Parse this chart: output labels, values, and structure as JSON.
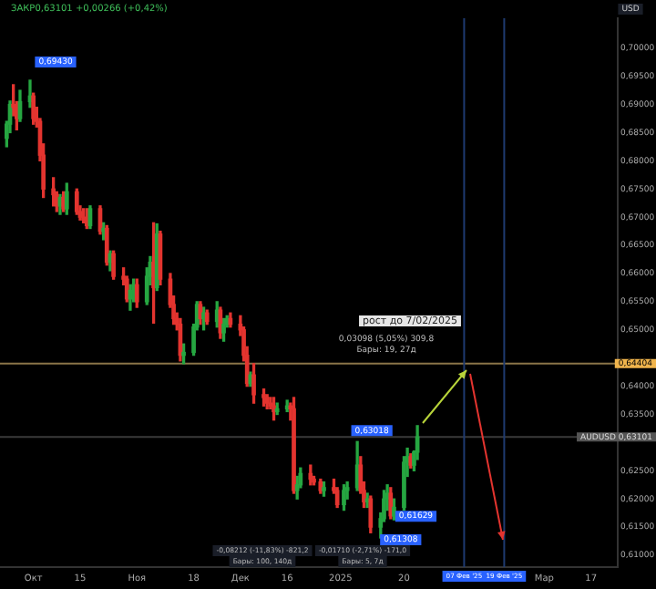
{
  "chart_data": {
    "type": "candlestick",
    "title": "ЗАКР0,63101 +0,00266 (+0,42%)",
    "ylabel": "USD",
    "x": [
      "2024-09-23",
      "2024-09-24",
      "2024-09-25",
      "2024-09-26",
      "2024-09-27",
      "2024-09-30",
      "2024-10-01",
      "2024-10-02",
      "2024-10-03",
      "2024-10-04",
      "2024-10-07",
      "2024-10-08",
      "2024-10-09",
      "2024-10-10",
      "2024-10-11",
      "2024-10-14",
      "2024-10-15",
      "2024-10-16",
      "2024-10-17",
      "2024-10-18",
      "2024-10-21",
      "2024-10-22",
      "2024-10-23",
      "2024-10-24",
      "2024-10-25",
      "2024-10-28",
      "2024-10-29",
      "2024-10-30",
      "2024-10-31",
      "2024-11-01",
      "2024-11-04",
      "2024-11-05",
      "2024-11-06",
      "2024-11-07",
      "2024-11-08",
      "2024-11-11",
      "2024-11-12",
      "2024-11-13",
      "2024-11-14",
      "2024-11-15",
      "2024-11-18",
      "2024-11-19",
      "2024-11-20",
      "2024-11-21",
      "2024-11-22",
      "2024-11-25",
      "2024-11-26",
      "2024-11-27",
      "2024-11-28",
      "2024-11-29",
      "2024-12-02",
      "2024-12-03",
      "2024-12-04",
      "2024-12-05",
      "2024-12-06",
      "2024-12-09",
      "2024-12-10",
      "2024-12-11",
      "2024-12-12",
      "2024-12-13",
      "2024-12-16",
      "2024-12-17",
      "2024-12-18",
      "2024-12-19",
      "2024-12-20",
      "2024-12-23",
      "2024-12-24",
      "2024-12-26",
      "2024-12-27",
      "2024-12-30",
      "2024-12-31",
      "2025-01-02",
      "2025-01-03",
      "2025-01-06",
      "2025-01-07",
      "2025-01-08",
      "2025-01-09",
      "2025-01-10",
      "2025-01-13",
      "2025-01-14",
      "2025-01-15",
      "2025-01-16",
      "2025-01-17",
      "2025-01-20",
      "2025-01-21",
      "2025-01-22",
      "2025-01-23",
      "2025-01-24"
    ],
    "ohlc": [
      [
        0.684,
        0.687,
        0.6825,
        0.6865
      ],
      [
        0.6865,
        0.6906,
        0.685,
        0.69
      ],
      [
        0.69,
        0.6935,
        0.688,
        0.6895
      ],
      [
        0.6895,
        0.6905,
        0.6855,
        0.6875
      ],
      [
        0.6875,
        0.6925,
        0.687,
        0.6905
      ],
      [
        0.6905,
        0.6943,
        0.6895,
        0.6915
      ],
      [
        0.6915,
        0.692,
        0.6865,
        0.6875
      ],
      [
        0.6875,
        0.6895,
        0.686,
        0.687
      ],
      [
        0.687,
        0.6875,
        0.68,
        0.681
      ],
      [
        0.681,
        0.683,
        0.6735,
        0.675
      ],
      [
        0.675,
        0.677,
        0.672,
        0.674
      ],
      [
        0.674,
        0.6745,
        0.671,
        0.672
      ],
      [
        0.672,
        0.674,
        0.6705,
        0.6735
      ],
      [
        0.6735,
        0.6745,
        0.671,
        0.6715
      ],
      [
        0.6715,
        0.676,
        0.6705,
        0.6745
      ],
      [
        0.6745,
        0.675,
        0.6705,
        0.671
      ],
      [
        0.671,
        0.672,
        0.6695,
        0.67
      ],
      [
        0.67,
        0.6715,
        0.669,
        0.6695
      ],
      [
        0.6695,
        0.6715,
        0.668,
        0.6685
      ],
      [
        0.6685,
        0.672,
        0.668,
        0.6715
      ],
      [
        0.6715,
        0.672,
        0.667,
        0.6675
      ],
      [
        0.6675,
        0.669,
        0.666,
        0.668
      ],
      [
        0.668,
        0.6685,
        0.6615,
        0.662
      ],
      [
        0.662,
        0.664,
        0.6605,
        0.6635
      ],
      [
        0.6635,
        0.664,
        0.659,
        0.6595
      ],
      [
        0.6595,
        0.661,
        0.658,
        0.659
      ],
      [
        0.659,
        0.6595,
        0.655,
        0.6555
      ],
      [
        0.6555,
        0.658,
        0.6535,
        0.657
      ],
      [
        0.657,
        0.659,
        0.655,
        0.658
      ],
      [
        0.658,
        0.659,
        0.654,
        0.655
      ],
      [
        0.655,
        0.661,
        0.6545,
        0.6595
      ],
      [
        0.6595,
        0.663,
        0.658,
        0.662
      ],
      [
        0.662,
        0.669,
        0.6512,
        0.6575
      ],
      [
        0.6575,
        0.6688,
        0.657,
        0.667
      ],
      [
        0.667,
        0.6675,
        0.658,
        0.659
      ],
      [
        0.659,
        0.66,
        0.654,
        0.6545
      ],
      [
        0.6545,
        0.656,
        0.651,
        0.652
      ],
      [
        0.652,
        0.653,
        0.65,
        0.651
      ],
      [
        0.651,
        0.652,
        0.6445,
        0.6455
      ],
      [
        0.6455,
        0.6475,
        0.644,
        0.646
      ],
      [
        0.646,
        0.651,
        0.6455,
        0.6505
      ],
      [
        0.6505,
        0.655,
        0.65,
        0.6545
      ],
      [
        0.6545,
        0.655,
        0.651,
        0.652
      ],
      [
        0.652,
        0.654,
        0.65,
        0.653
      ],
      [
        0.653,
        0.6535,
        0.651,
        0.6515
      ],
      [
        0.6515,
        0.655,
        0.6505,
        0.6535
      ],
      [
        0.6535,
        0.654,
        0.6485,
        0.6495
      ],
      [
        0.6495,
        0.652,
        0.648,
        0.651
      ],
      [
        0.651,
        0.6525,
        0.6505,
        0.652
      ],
      [
        0.652,
        0.653,
        0.6505,
        0.651
      ],
      [
        0.651,
        0.6525,
        0.649,
        0.65
      ],
      [
        0.65,
        0.6505,
        0.6445,
        0.6455
      ],
      [
        0.6455,
        0.647,
        0.64,
        0.6405
      ],
      [
        0.6405,
        0.6425,
        0.64,
        0.642
      ],
      [
        0.642,
        0.644,
        0.637,
        0.6385
      ],
      [
        0.6385,
        0.6395,
        0.6365,
        0.638
      ],
      [
        0.638,
        0.6385,
        0.636,
        0.637
      ],
      [
        0.637,
        0.638,
        0.636,
        0.6365
      ],
      [
        0.6365,
        0.638,
        0.634,
        0.6355
      ],
      [
        0.6355,
        0.637,
        0.635,
        0.636
      ],
      [
        0.636,
        0.6375,
        0.6355,
        0.6365
      ],
      [
        0.6365,
        0.637,
        0.634,
        0.636
      ],
      [
        0.636,
        0.638,
        0.621,
        0.6215
      ],
      [
        0.6215,
        0.624,
        0.62,
        0.6225
      ],
      [
        0.6225,
        0.6255,
        0.622,
        0.6245
      ],
      [
        0.6245,
        0.626,
        0.6225,
        0.6235
      ],
      [
        0.6235,
        0.624,
        0.6225,
        0.623
      ],
      [
        0.623,
        0.6235,
        0.621,
        0.6215
      ],
      [
        0.6215,
        0.623,
        0.6205,
        0.622
      ],
      [
        0.622,
        0.6235,
        0.621,
        0.6215
      ],
      [
        0.6215,
        0.622,
        0.6185,
        0.619
      ],
      [
        0.619,
        0.6225,
        0.618,
        0.6215
      ],
      [
        0.6215,
        0.623,
        0.62,
        0.622
      ],
      [
        0.622,
        0.63018,
        0.6215,
        0.626
      ],
      [
        0.626,
        0.6275,
        0.621,
        0.6215
      ],
      [
        0.6215,
        0.623,
        0.6185,
        0.6195
      ],
      [
        0.6195,
        0.621,
        0.6185,
        0.62
      ],
      [
        0.62,
        0.6205,
        0.614,
        0.615
      ],
      [
        0.615,
        0.6175,
        0.61308,
        0.6165
      ],
      [
        0.6165,
        0.6215,
        0.616,
        0.62
      ],
      [
        0.62,
        0.6225,
        0.618,
        0.621
      ],
      [
        0.621,
        0.622,
        0.6165,
        0.617
      ],
      [
        0.617,
        0.62,
        0.61629,
        0.6185
      ],
      [
        0.6185,
        0.6275,
        0.618,
        0.6265
      ],
      [
        0.6265,
        0.629,
        0.624,
        0.6275
      ],
      [
        0.6275,
        0.628,
        0.6255,
        0.626
      ],
      [
        0.626,
        0.6285,
        0.625,
        0.6283
      ],
      [
        0.6283,
        0.633,
        0.627,
        0.63101
      ]
    ],
    "colors": [
      "#26a641",
      "#26a641",
      "#e3342f",
      "#e3342f",
      "#26a641",
      "#26a641",
      "#e3342f",
      "#e3342f",
      "#e3342f",
      "#e3342f",
      "#e3342f",
      "#e3342f",
      "#26a641",
      "#e3342f",
      "#26a641",
      "#e3342f",
      "#e3342f",
      "#e3342f",
      "#e3342f",
      "#26a641",
      "#e3342f",
      "#26a641",
      "#e3342f",
      "#26a641",
      "#e3342f",
      "#e3342f",
      "#e3342f",
      "#26a641",
      "#26a641",
      "#e3342f",
      "#26a641",
      "#26a641",
      "#e3342f",
      "#26a641",
      "#e3342f",
      "#e3342f",
      "#e3342f",
      "#e3342f",
      "#e3342f",
      "#26a641",
      "#26a641",
      "#26a641",
      "#e3342f",
      "#26a641",
      "#e3342f",
      "#26a641",
      "#e3342f",
      "#26a641",
      "#26a641",
      "#e3342f",
      "#e3342f",
      "#e3342f",
      "#e3342f",
      "#26a641",
      "#e3342f",
      "#e3342f",
      "#e3342f",
      "#e3342f",
      "#e3342f",
      "#26a641",
      "#26a641",
      "#e3342f",
      "#e3342f",
      "#26a641",
      "#26a641",
      "#e3342f",
      "#e3342f",
      "#e3342f",
      "#26a641",
      "#e3342f",
      "#e3342f",
      "#26a641",
      "#26a641",
      "#26a641",
      "#e3342f",
      "#e3342f",
      "#26a641",
      "#e3342f",
      "#26a641",
      "#26a641",
      "#26a641",
      "#e3342f",
      "#26a641",
      "#26a641",
      "#26a641",
      "#e3342f",
      "#26a641",
      "#26a641"
    ],
    "xlim": [
      "2024-09-21",
      "2025-03-25"
    ],
    "xticks": [
      {
        "value": "2024-10-01",
        "label": "Окт"
      },
      {
        "value": "2024-10-15",
        "label": "15"
      },
      {
        "value": "2024-11-01",
        "label": "Ноя"
      },
      {
        "value": "2024-11-18",
        "label": "18"
      },
      {
        "value": "2024-12-02",
        "label": "Дек"
      },
      {
        "value": "2024-12-16",
        "label": "16"
      },
      {
        "value": "2025-01-01",
        "label": "2025"
      },
      {
        "value": "2025-01-20",
        "label": "20"
      },
      {
        "value": "2025-03-03",
        "label": "Мар"
      },
      {
        "value": "2025-03-17",
        "label": "17"
      }
    ],
    "ylim": [
      0.6079,
      0.7053
    ],
    "yticks": [
      {
        "value": 0.61,
        "label": "0,61000"
      },
      {
        "value": 0.615,
        "label": "0,61500"
      },
      {
        "value": 0.62,
        "label": "0,62000"
      },
      {
        "value": 0.625,
        "label": "0,62500"
      },
      {
        "value": 0.635,
        "label": "0,63500"
      },
      {
        "value": 0.64,
        "label": "0,64000"
      },
      {
        "value": 0.65,
        "label": "0,65000"
      },
      {
        "value": 0.655,
        "label": "0,65500"
      },
      {
        "value": 0.66,
        "label": "0,66000"
      },
      {
        "value": 0.665,
        "label": "0,66500"
      },
      {
        "value": 0.67,
        "label": "0,67000"
      },
      {
        "value": 0.675,
        "label": "0,67500"
      },
      {
        "value": 0.68,
        "label": "0,68000"
      },
      {
        "value": 0.685,
        "label": "0,68500"
      },
      {
        "value": 0.69,
        "label": "0,69000"
      },
      {
        "value": 0.695,
        "label": "0,69500"
      },
      {
        "value": 0.7,
        "label": "0,70000"
      }
    ],
    "ref_lines": [
      {
        "axis": "y",
        "value": 0.64404,
        "label": "0,64404",
        "color": "#8a7448"
      },
      {
        "axis": "y",
        "value": 0.63101,
        "label": "AUDUSD 0,63101",
        "color": "#3a3a3a"
      },
      {
        "axis": "x",
        "value": "2025-02-07",
        "label": "07 Фев '25",
        "color": "#1e3a70"
      },
      {
        "axis": "x",
        "value": "2025-02-19",
        "label": "19 Фев '25",
        "color": "#1e3a70"
      }
    ],
    "annotations": [
      {
        "text": "0,69430",
        "x": "2024-09-30",
        "y": 0.6943
      },
      {
        "text": "0,63018",
        "x": "2025-01-06",
        "y": 0.63018
      },
      {
        "text": "0,61629",
        "x": "2025-01-17",
        "y": 0.61629
      },
      {
        "text": "0,61308",
        "x": "2025-01-13",
        "y": 0.61308
      },
      "рост до 7/02/2025",
      "0,03098 (5,05%) 309,8",
      "Бары: 19, 27д",
      "-0,08212 (-11,83%) -821,2",
      "Бары: 100, 140д",
      "-0,01710 (-2,71%) -171,0",
      "Бары: 5, 7д"
    ],
    "grid": false
  }
}
